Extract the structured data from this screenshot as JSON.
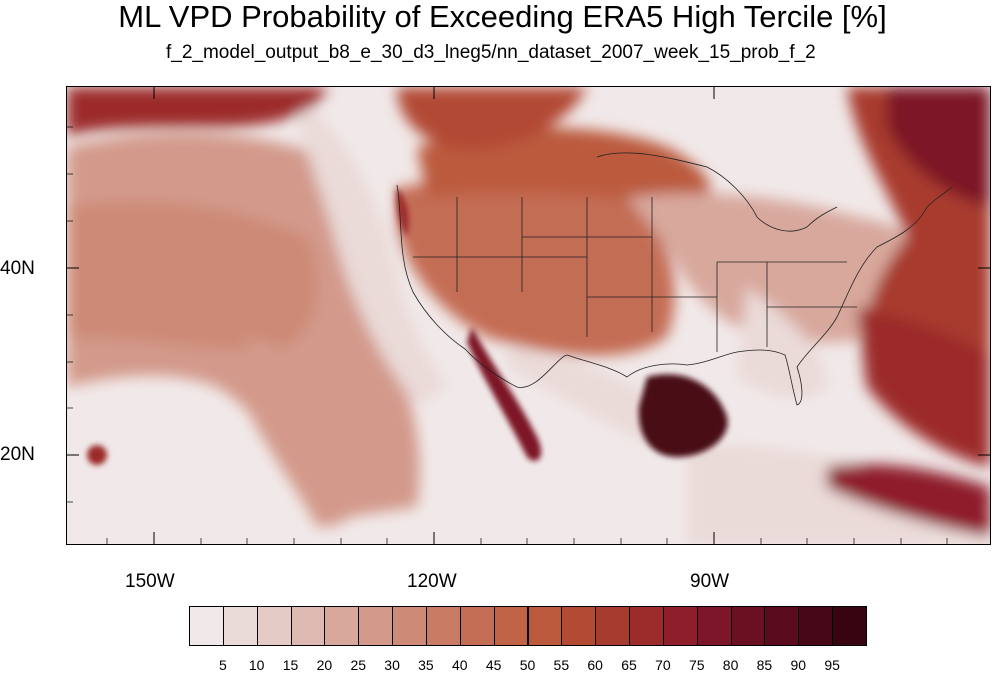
{
  "title": "ML VPD Probability of Exceeding ERA5 High Tercile [%]",
  "subtitle": "f_2_model_output_b8_e_30_d3_lneg5/nn_dataset_2007_week_15_prob_f_2",
  "map": {
    "lon_labels": [
      "150W",
      "120W",
      "90W"
    ],
    "lat_labels": [
      "40N",
      "20N"
    ]
  },
  "colorbar": {
    "labels": [
      "5",
      "10",
      "15",
      "20",
      "25",
      "30",
      "35",
      "40",
      "45",
      "50",
      "55",
      "60",
      "65",
      "70",
      "75",
      "80",
      "85",
      "90",
      "95"
    ],
    "colors": [
      "#f1e9e9",
      "#eadad8",
      "#e5cbc6",
      "#deb9b1",
      "#d8a89d",
      "#d39a8b",
      "#cd8a76",
      "#c97b64",
      "#c46d55",
      "#c06347",
      "#bb5a3c",
      "#b24a34",
      "#a83b2f",
      "#9c2c2c",
      "#8e1f2a",
      "#7d1628",
      "#6b1023",
      "#5a0b1e",
      "#480717",
      "#380412"
    ]
  }
}
